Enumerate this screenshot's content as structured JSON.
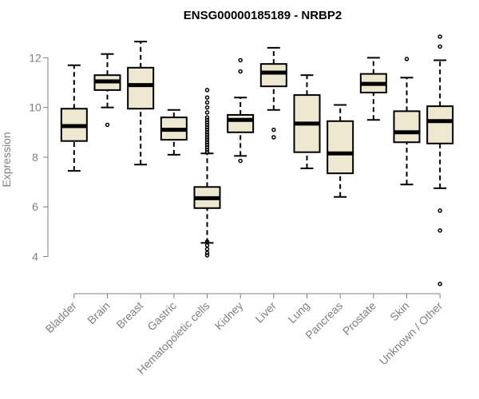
{
  "chart_data": {
    "type": "boxplot",
    "title": "ENSG00000185189 - NRBP2",
    "xlabel": "",
    "ylabel": "Expression",
    "ylim": [
      2.7,
      13.2
    ],
    "yticks": [
      4,
      6,
      8,
      10,
      12
    ],
    "grid": false,
    "legend": "none",
    "colors": {
      "box_fill": "#efe8d0",
      "stroke": "#000000",
      "axis": "#808080"
    },
    "categories": [
      "Bladder",
      "Brain",
      "Breast",
      "Gastric",
      "Hematopoietic cells",
      "Kidney",
      "Liver",
      "Lung",
      "Pancreas",
      "Prostate",
      "Skin",
      "Unknown / Other"
    ],
    "boxes": [
      {
        "min": 7.45,
        "q1": 8.65,
        "median": 9.25,
        "q3": 9.95,
        "max": 11.7,
        "outliers": []
      },
      {
        "min": 10.0,
        "q1": 10.7,
        "median": 11.05,
        "q3": 11.3,
        "max": 12.15,
        "outliers": [
          9.3
        ]
      },
      {
        "min": 7.7,
        "q1": 9.95,
        "median": 10.9,
        "q3": 11.6,
        "max": 12.65,
        "outliers": []
      },
      {
        "min": 8.1,
        "q1": 8.7,
        "median": 9.1,
        "q3": 9.6,
        "max": 9.9,
        "outliers": []
      },
      {
        "min": 4.55,
        "q1": 5.95,
        "median": 6.35,
        "q3": 6.8,
        "max": 8.15,
        "outliers": [
          4.05,
          4.15,
          4.3,
          4.45,
          4.6,
          8.2,
          8.3,
          8.4,
          8.5,
          8.6,
          8.7,
          8.8,
          8.9,
          9.0,
          9.1,
          9.2,
          9.3,
          9.4,
          9.5,
          9.6,
          9.8,
          10.0,
          10.2,
          10.4,
          10.7
        ]
      },
      {
        "min": 8.05,
        "q1": 9.0,
        "median": 9.5,
        "q3": 9.7,
        "max": 10.4,
        "outliers": [
          7.85,
          11.45,
          11.9
        ]
      },
      {
        "min": 9.9,
        "q1": 10.85,
        "median": 11.4,
        "q3": 11.75,
        "max": 12.4,
        "outliers": [
          9.1,
          8.8
        ]
      },
      {
        "min": 7.55,
        "q1": 8.2,
        "median": 9.35,
        "q3": 10.5,
        "max": 11.3,
        "outliers": []
      },
      {
        "min": 6.4,
        "q1": 7.35,
        "median": 8.15,
        "q3": 9.45,
        "max": 10.1,
        "outliers": []
      },
      {
        "min": 9.5,
        "q1": 10.6,
        "median": 10.95,
        "q3": 11.35,
        "max": 12.0,
        "outliers": []
      },
      {
        "min": 6.9,
        "q1": 8.6,
        "median": 9.0,
        "q3": 9.85,
        "max": 11.2,
        "outliers": [
          11.95
        ]
      },
      {
        "min": 6.75,
        "q1": 8.55,
        "median": 9.45,
        "q3": 10.05,
        "max": 11.9,
        "outliers": [
          2.9,
          5.05,
          5.85,
          12.45,
          12.85
        ]
      }
    ]
  }
}
